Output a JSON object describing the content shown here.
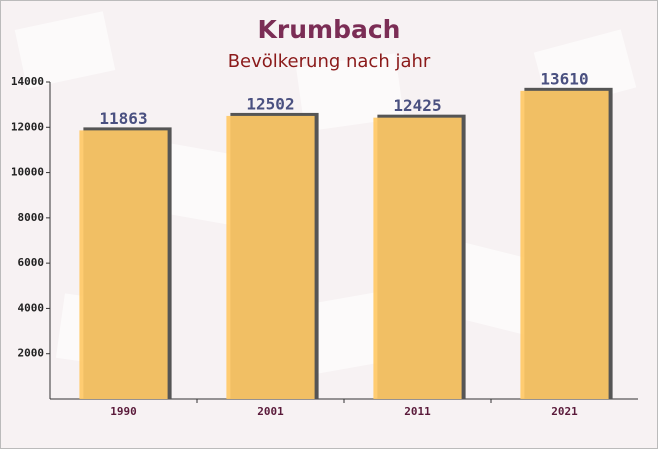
{
  "chart_data": {
    "type": "bar",
    "title": "Krumbach",
    "subtitle": "Bevölkerung nach jahr",
    "categories": [
      "1990",
      "2001",
      "2011",
      "2021"
    ],
    "values": [
      11863,
      12502,
      12425,
      13610
    ],
    "color": "#ffc966",
    "ylim": [
      0,
      14000
    ],
    "yticks": [
      2000,
      4000,
      6000,
      8000,
      10000,
      12000,
      14000
    ],
    "grid": false
  }
}
